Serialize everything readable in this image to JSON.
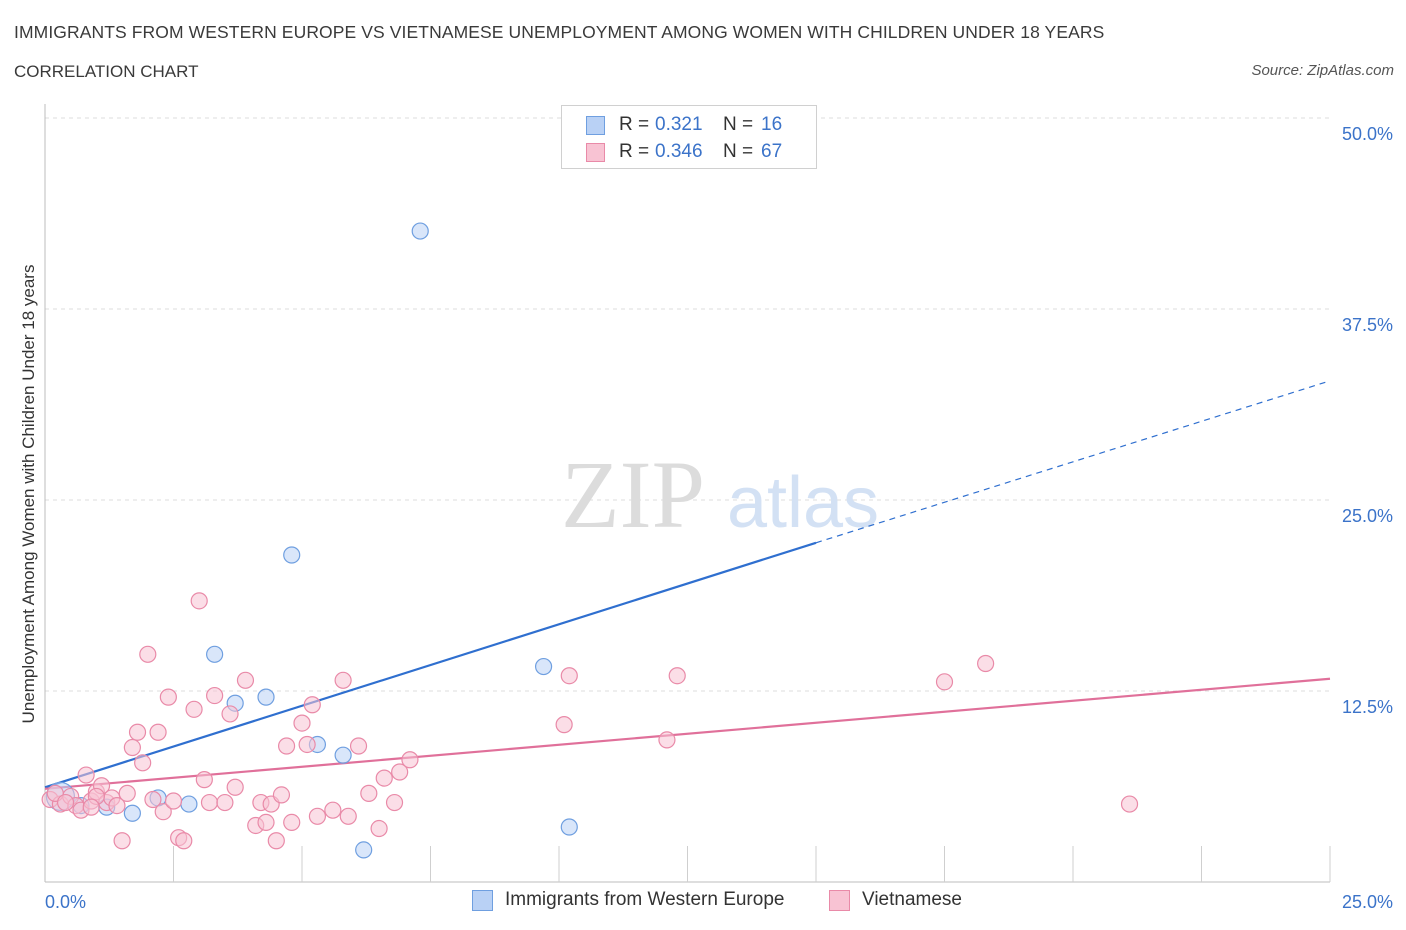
{
  "header": {
    "title": "IMMIGRANTS FROM WESTERN EUROPE VS VIETNAMESE UNEMPLOYMENT AMONG WOMEN WITH CHILDREN UNDER 18 YEARS",
    "subtitle": "CORRELATION CHART",
    "source": "Source: ZipAtlas.com"
  },
  "watermark": {
    "zip": "ZIP",
    "atlas": "atlas"
  },
  "legend": {
    "rows": [
      {
        "r_label": "R =",
        "r_value": "0.321",
        "n_label": "N =",
        "n_value": "16",
        "color": "#b9d1f5",
        "border": "#6f9fe0"
      },
      {
        "r_label": "R =",
        "r_value": "0.346",
        "n_label": "N =",
        "n_value": "67",
        "color": "#f8c3d3",
        "border": "#e98aa8"
      }
    ]
  },
  "bottom_legend": [
    {
      "label": "Immigrants from Western Europe",
      "color": "#b9d1f5",
      "border": "#6f9fe0"
    },
    {
      "label": "Vietnamese",
      "color": "#f8c3d3",
      "border": "#e98aa8"
    }
  ],
  "chart_data": {
    "type": "scatter",
    "title": "IMMIGRANTS FROM WESTERN EUROPE VS VIETNAMESE UNEMPLOYMENT AMONG WOMEN WITH CHILDREN UNDER 18 YEARS",
    "xlabel": "",
    "ylabel": "Unemployment Among Women with Children Under 18 years",
    "xlim": [
      0,
      25
    ],
    "ylim": [
      0,
      50
    ],
    "x_tick_labels": {
      "left": "0.0%",
      "right": "25.0%"
    },
    "y_ticks": [
      {
        "value": 12.5,
        "label": "12.5%"
      },
      {
        "value": 25,
        "label": "25.0%"
      },
      {
        "value": 37.5,
        "label": "37.5%"
      },
      {
        "value": 50,
        "label": "50.0%"
      }
    ],
    "x_minor_ticks": [
      2.5,
      5,
      7.5,
      10,
      12.5,
      15,
      17.5,
      20,
      22.5,
      25
    ],
    "grid": true,
    "series": [
      {
        "name": "Immigrants from Western Europe",
        "color": "#6f9fe0",
        "fill": "#b9d1f5",
        "trend": {
          "x0": 0,
          "y0": 6.2,
          "x1": 15,
          "y1": 22.2,
          "dash_to_x": 25,
          "dash_to_y": 32.8,
          "color": "#2f6fcf"
        },
        "points": [
          {
            "x": 0.3,
            "y": 5.6,
            "big": true
          },
          {
            "x": 0.7,
            "y": 5.0
          },
          {
            "x": 1.2,
            "y": 4.9
          },
          {
            "x": 1.7,
            "y": 4.5
          },
          {
            "x": 2.2,
            "y": 5.5
          },
          {
            "x": 2.8,
            "y": 5.1
          },
          {
            "x": 3.3,
            "y": 14.9
          },
          {
            "x": 3.7,
            "y": 11.7
          },
          {
            "x": 4.3,
            "y": 12.1
          },
          {
            "x": 4.8,
            "y": 21.4
          },
          {
            "x": 5.3,
            "y": 9.0
          },
          {
            "x": 5.8,
            "y": 8.3
          },
          {
            "x": 6.2,
            "y": 2.1
          },
          {
            "x": 7.3,
            "y": 42.6
          },
          {
            "x": 9.7,
            "y": 14.1
          },
          {
            "x": 10.2,
            "y": 3.6
          }
        ]
      },
      {
        "name": "Vietnamese",
        "color": "#e98aa8",
        "fill": "#f8c3d3",
        "trend": {
          "x0": 0,
          "y0": 6.1,
          "x1": 25,
          "y1": 13.3,
          "color": "#e0709a"
        },
        "points": [
          {
            "x": 0.1,
            "y": 5.4
          },
          {
            "x": 0.3,
            "y": 5.1
          },
          {
            "x": 0.5,
            "y": 5.6
          },
          {
            "x": 0.6,
            "y": 5.0
          },
          {
            "x": 0.7,
            "y": 4.7
          },
          {
            "x": 0.8,
            "y": 7.0
          },
          {
            "x": 0.9,
            "y": 5.3
          },
          {
            "x": 1.0,
            "y": 5.9
          },
          {
            "x": 1.1,
            "y": 6.3
          },
          {
            "x": 1.2,
            "y": 5.2
          },
          {
            "x": 1.3,
            "y": 5.5
          },
          {
            "x": 1.4,
            "y": 5.0
          },
          {
            "x": 1.5,
            "y": 2.7
          },
          {
            "x": 1.6,
            "y": 5.8
          },
          {
            "x": 1.7,
            "y": 8.8
          },
          {
            "x": 1.8,
            "y": 9.8
          },
          {
            "x": 1.9,
            "y": 7.8
          },
          {
            "x": 2.0,
            "y": 14.9
          },
          {
            "x": 2.1,
            "y": 5.4
          },
          {
            "x": 2.2,
            "y": 9.8
          },
          {
            "x": 2.3,
            "y": 4.6
          },
          {
            "x": 2.4,
            "y": 12.1
          },
          {
            "x": 2.5,
            "y": 5.3
          },
          {
            "x": 2.6,
            "y": 2.9
          },
          {
            "x": 2.7,
            "y": 2.7
          },
          {
            "x": 2.9,
            "y": 11.3
          },
          {
            "x": 3.0,
            "y": 18.4
          },
          {
            "x": 3.1,
            "y": 6.7
          },
          {
            "x": 3.2,
            "y": 5.2
          },
          {
            "x": 3.3,
            "y": 12.2
          },
          {
            "x": 3.5,
            "y": 5.2
          },
          {
            "x": 3.6,
            "y": 11.0
          },
          {
            "x": 3.7,
            "y": 6.2
          },
          {
            "x": 3.9,
            "y": 13.2
          },
          {
            "x": 4.1,
            "y": 3.7
          },
          {
            "x": 4.2,
            "y": 5.2
          },
          {
            "x": 4.3,
            "y": 3.9
          },
          {
            "x": 4.4,
            "y": 5.1
          },
          {
            "x": 4.5,
            "y": 2.7
          },
          {
            "x": 4.6,
            "y": 5.7
          },
          {
            "x": 4.7,
            "y": 8.9
          },
          {
            "x": 4.8,
            "y": 3.9
          },
          {
            "x": 5.0,
            "y": 10.4
          },
          {
            "x": 5.1,
            "y": 9.0
          },
          {
            "x": 5.2,
            "y": 11.6
          },
          {
            "x": 5.3,
            "y": 4.3
          },
          {
            "x": 5.6,
            "y": 4.7
          },
          {
            "x": 5.8,
            "y": 13.2
          },
          {
            "x": 5.9,
            "y": 4.3
          },
          {
            "x": 6.1,
            "y": 8.9
          },
          {
            "x": 6.3,
            "y": 5.8
          },
          {
            "x": 6.5,
            "y": 3.5
          },
          {
            "x": 6.6,
            "y": 6.8
          },
          {
            "x": 6.8,
            "y": 5.2
          },
          {
            "x": 6.9,
            "y": 7.2
          },
          {
            "x": 7.1,
            "y": 8.0
          },
          {
            "x": 10.1,
            "y": 10.3
          },
          {
            "x": 10.2,
            "y": 13.5
          },
          {
            "x": 12.1,
            "y": 9.3
          },
          {
            "x": 12.3,
            "y": 13.5
          },
          {
            "x": 17.5,
            "y": 13.1
          },
          {
            "x": 18.3,
            "y": 14.3
          },
          {
            "x": 21.1,
            "y": 5.1
          },
          {
            "x": 0.2,
            "y": 5.8
          },
          {
            "x": 0.4,
            "y": 5.2
          },
          {
            "x": 1.0,
            "y": 5.6
          },
          {
            "x": 0.9,
            "y": 4.9
          }
        ]
      }
    ]
  }
}
